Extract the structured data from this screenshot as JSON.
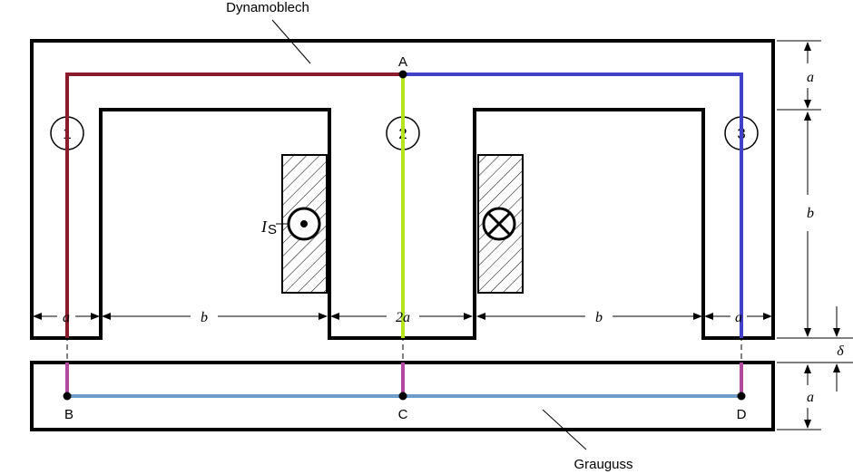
{
  "labels": {
    "dynamoblech": "Dynamoblech",
    "grauguss": "Grauguss",
    "point_a": "A",
    "point_b": "B",
    "point_c": "C",
    "point_d": "D",
    "current": "I",
    "current_sub": "S"
  },
  "legs": [
    {
      "number": "1"
    },
    {
      "number": "2"
    },
    {
      "number": "3"
    }
  ],
  "dimensions": {
    "bottom": [
      "a",
      "b",
      "2a",
      "b",
      "a"
    ],
    "right_top": "a",
    "right_mid": "b",
    "right_gap": "δ",
    "right_bottom": "a"
  },
  "colors": {
    "path_left": "#8b1a2b",
    "path_center": "#b5e61d",
    "path_right": "#4040c8",
    "path_gap": "#b04aa0",
    "path_bottom": "#6f9cc8",
    "outline": "#000000"
  }
}
